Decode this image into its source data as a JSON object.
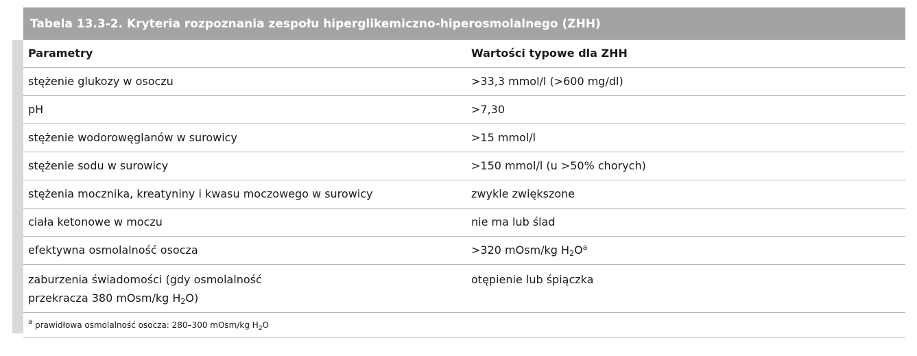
{
  "title": "Tabela 13.3-2. Kryteria rozpoznania zespołu hiperglikemiczno-hiperosmolalnego (ZHH)",
  "header": {
    "col1": "Parametry",
    "col2": "Wartości typowe dla ZHH"
  },
  "rows": [
    {
      "param": "stężenie glukozy w osoczu",
      "value": ">33,3 mmol/l (>600 mg/dl)"
    },
    {
      "param": "pH",
      "value": ">7,30"
    },
    {
      "param": "stężenie wodorowęglanów w surowicy",
      "value": ">15 mmol/l"
    },
    {
      "param": "stężenie sodu w surowicy",
      "value": ">150 mmol/l (u >50% chorych)"
    },
    {
      "param": "stężenia mocznika, kreatyniny i kwasu moczowego w surowicy",
      "value": "zwykle zwiększone"
    },
    {
      "param": "ciała ketonowe w moczu",
      "value": "nie ma lub ślad"
    },
    {
      "param": "efektywna osmolalność osocza",
      "value_prefix": ">320 mOsm/kg H",
      "value_sub": "2",
      "value_suffix": "O",
      "value_sup": "a"
    },
    {
      "param_line1": "zaburzenia świadomości (gdy osmolalność",
      "param_line2_prefix": "przekracza 380 mOsm/kg H",
      "param_line2_sub": "2",
      "param_line2_suffix": "O)",
      "value": "otępienie lub śpiączka"
    }
  ],
  "footnote": {
    "mark": "a",
    "text_prefix": " prawidłowa osmolalność osocza: 280–300 mOsm/kg H",
    "text_sub": "2",
    "text_suffix": "O"
  },
  "colors": {
    "title_bg": "#a3a3a3",
    "title_text": "#ffffff",
    "side_bar": "#d9d9d9",
    "row_border": "#b5b5b5"
  }
}
